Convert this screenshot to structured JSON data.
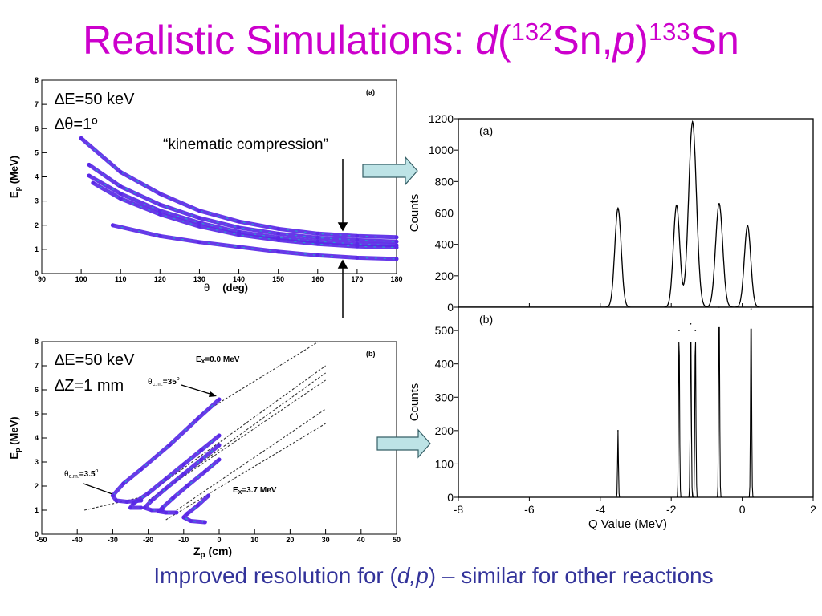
{
  "title": {
    "main": "Realistic Simulations: ",
    "reaction_d": "d",
    "reaction_open": "(",
    "target_mass": "132",
    "target_sym": "Sn,",
    "reaction_p": "p",
    "reaction_close": ")",
    "product_mass": "133",
    "product_sym": "Sn"
  },
  "caption": {
    "prefix": "Improved resolution for (",
    "reaction": "d,p",
    "suffix": ") – similar for other reactions"
  },
  "annotations": {
    "kinematic": "“kinematic compression”",
    "dE_a": "∆E=50 keV",
    "dtheta_a": "∆θ=1º",
    "dE_b": "∆E=50 keV",
    "dZ_b": "∆Z=1 mm",
    "theta35": "θc.m.=35º",
    "theta35_main": "θ",
    "theta35_sub": "c.m.",
    "theta35_val": "=35",
    "theta35_sup": "o",
    "theta3_main": "θ",
    "theta3_sub": "c.m.",
    "theta3_val": "=3.5",
    "theta3_sup": "o",
    "ex0_main": "E",
    "ex0_sub": "X",
    "ex0_val": "=0.0 MeV",
    "ex37_main": "E",
    "ex37_sub": "X",
    "ex37_val": "=3.7 MeV"
  },
  "colors": {
    "title": "#cc00cc",
    "caption": "#33339a",
    "arrow_fill": "#bde3e6",
    "arrow_stroke": "#355f66",
    "scatter_primary": "#5a28e6",
    "scatter_accent": "#16b4cc"
  },
  "chart_data": [
    {
      "id": "top-left",
      "type": "scatter",
      "panel_label": "(a)",
      "xlabel": "θ (deg)",
      "xlabel_main": "θ",
      "xlabel_unit": "(deg)",
      "ylabel": "Ep (MeV)",
      "ylabel_main": "E",
      "ylabel_sub": "p",
      "ylabel_unit": " (MeV)",
      "xlim": [
        90,
        180
      ],
      "ylim": [
        0,
        8
      ],
      "xticks": [
        90,
        100,
        110,
        120,
        130,
        140,
        150,
        160,
        170,
        180
      ],
      "xtick_labels": [
        "90",
        "100",
        "110",
        "120",
        "130",
        "140",
        "150",
        "160",
        "170",
        "180"
      ],
      "yticks": [
        0,
        1,
        2,
        3,
        4,
        5,
        6,
        7,
        8
      ],
      "ytick_labels": [
        "0",
        "1",
        "2",
        "3",
        "4",
        "5",
        "6",
        "7",
        "8"
      ],
      "series": [
        {
          "x": [
            100,
            110,
            120,
            130,
            140,
            150,
            160,
            170,
            180
          ],
          "y": [
            5.6,
            4.2,
            3.3,
            2.6,
            2.15,
            1.85,
            1.65,
            1.55,
            1.5
          ]
        },
        {
          "x": [
            102,
            110,
            120,
            130,
            140,
            150,
            160,
            170,
            180
          ],
          "y": [
            4.5,
            3.6,
            2.85,
            2.3,
            1.9,
            1.65,
            1.48,
            1.38,
            1.32
          ]
        },
        {
          "x": [
            102,
            110,
            120,
            130,
            140,
            150,
            160,
            170,
            180
          ],
          "y": [
            4.05,
            3.3,
            2.6,
            2.1,
            1.72,
            1.48,
            1.32,
            1.22,
            1.17
          ]
        },
        {
          "x": [
            103,
            110,
            120,
            130,
            140,
            150,
            160,
            170,
            180
          ],
          "y": [
            3.75,
            3.1,
            2.45,
            1.95,
            1.6,
            1.38,
            1.22,
            1.12,
            1.08
          ]
        },
        {
          "x": [
            108,
            120,
            130,
            140,
            150,
            160,
            170,
            180
          ],
          "y": [
            2.0,
            1.55,
            1.3,
            1.1,
            0.9,
            0.75,
            0.65,
            0.6
          ]
        }
      ]
    },
    {
      "id": "bottom-left",
      "type": "scatter",
      "panel_label": "(b)",
      "xlabel": "Zp (cm)",
      "xlabel_main": "Z",
      "xlabel_sub": "p",
      "xlabel_unit": " (cm)",
      "ylabel": "Ep (MeV)",
      "ylabel_main": "E",
      "ylabel_sub": "p",
      "ylabel_unit": " (MeV)",
      "xlim": [
        -50,
        50
      ],
      "ylim": [
        0,
        8
      ],
      "xticks": [
        -50,
        -40,
        -30,
        -20,
        -10,
        0,
        10,
        20,
        30,
        40,
        50
      ],
      "xtick_labels": [
        "-50",
        "-40",
        "-30",
        "-20",
        "-10",
        "0",
        "10",
        "20",
        "30",
        "40",
        "50"
      ],
      "yticks": [
        0,
        1,
        2,
        3,
        4,
        5,
        6,
        7,
        8
      ],
      "ytick_labels": [
        "0",
        "1",
        "2",
        "3",
        "4",
        "5",
        "6",
        "7",
        "8"
      ],
      "series": [
        {
          "x": [
            0,
            -6,
            -14,
            -22,
            -27,
            -30,
            -29,
            -26,
            -22
          ],
          "y": [
            5.6,
            4.8,
            3.7,
            2.7,
            2.1,
            1.6,
            1.4,
            1.35,
            1.4
          ]
        },
        {
          "x": [
            0,
            -5,
            -10,
            -15,
            -20,
            -24,
            -25,
            -22
          ],
          "y": [
            4.1,
            3.5,
            2.9,
            2.3,
            1.7,
            1.3,
            1.1,
            1.1
          ]
        },
        {
          "x": [
            0,
            -5,
            -10,
            -15,
            -19,
            -21,
            -19,
            -16
          ],
          "y": [
            3.7,
            3.1,
            2.5,
            1.9,
            1.4,
            1.1,
            1.0,
            1.0
          ]
        },
        {
          "x": [
            0,
            -4,
            -9,
            -13,
            -16,
            -17,
            -15,
            -12
          ],
          "y": [
            3.1,
            2.6,
            2.0,
            1.5,
            1.1,
            0.95,
            0.9,
            0.9
          ]
        },
        {
          "x": [
            -3,
            -6,
            -9,
            -10,
            -8,
            -4
          ],
          "y": [
            1.6,
            1.2,
            0.85,
            0.7,
            0.55,
            0.5
          ]
        }
      ],
      "guide_lines": [
        {
          "x": [
            -5,
            28
          ],
          "y": [
            5.0,
            8.0
          ]
        },
        {
          "x": [
            -17,
            30
          ],
          "y": [
            2.0,
            7.0
          ]
        },
        {
          "x": [
            -18,
            30
          ],
          "y": [
            1.6,
            6.7
          ]
        },
        {
          "x": [
            -20,
            30
          ],
          "y": [
            1.4,
            6.4
          ]
        },
        {
          "x": [
            -12,
            30
          ],
          "y": [
            1.0,
            5.2
          ]
        },
        {
          "x": [
            -15,
            30
          ],
          "y": [
            0.6,
            4.6
          ]
        },
        {
          "x": [
            -38,
            -20
          ],
          "y": [
            1.0,
            1.6
          ]
        }
      ]
    },
    {
      "id": "top-right",
      "type": "line",
      "panel_label": "(a)",
      "ylabel": "Counts",
      "xlim": [
        -8,
        2
      ],
      "ylim": [
        0,
        1200
      ],
      "yticks": [
        0,
        200,
        400,
        600,
        800,
        1000,
        1200
      ],
      "ytick_labels": [
        "0",
        "200",
        "400",
        "600",
        "800",
        "1000",
        "1200"
      ],
      "peaks": [
        {
          "center": -3.5,
          "height": 630,
          "sigma": 0.09
        },
        {
          "center": -1.85,
          "height": 650,
          "sigma": 0.09
        },
        {
          "center": -1.4,
          "height": 1180,
          "sigma": 0.11
        },
        {
          "center": -0.65,
          "height": 660,
          "sigma": 0.1
        },
        {
          "center": 0.15,
          "height": 520,
          "sigma": 0.09
        }
      ]
    },
    {
      "id": "bottom-right",
      "type": "line",
      "panel_label": "(b)",
      "xlabel": "Q Value (MeV)",
      "ylabel": "Counts",
      "xlim": [
        -8,
        2
      ],
      "ylim": [
        0,
        570
      ],
      "xticks": [
        -8,
        -6,
        -4,
        -2,
        0,
        2
      ],
      "xtick_labels": [
        "-8",
        "-6",
        "-4",
        "-2",
        "0",
        "2"
      ],
      "yticks": [
        0,
        100,
        200,
        300,
        400,
        500
      ],
      "ytick_labels": [
        "0",
        "100",
        "200",
        "300",
        "400",
        "500"
      ],
      "peaks": [
        {
          "center": -3.5,
          "height": 200,
          "sigma": 0.012
        },
        {
          "center": -1.78,
          "height": 500,
          "sigma": 0.015
        },
        {
          "center": -1.45,
          "height": 520,
          "sigma": 0.015
        },
        {
          "center": -1.32,
          "height": 500,
          "sigma": 0.015
        },
        {
          "center": -0.65,
          "height": 570,
          "sigma": 0.015
        },
        {
          "center": 0.25,
          "height": 565,
          "sigma": 0.015
        }
      ]
    }
  ]
}
